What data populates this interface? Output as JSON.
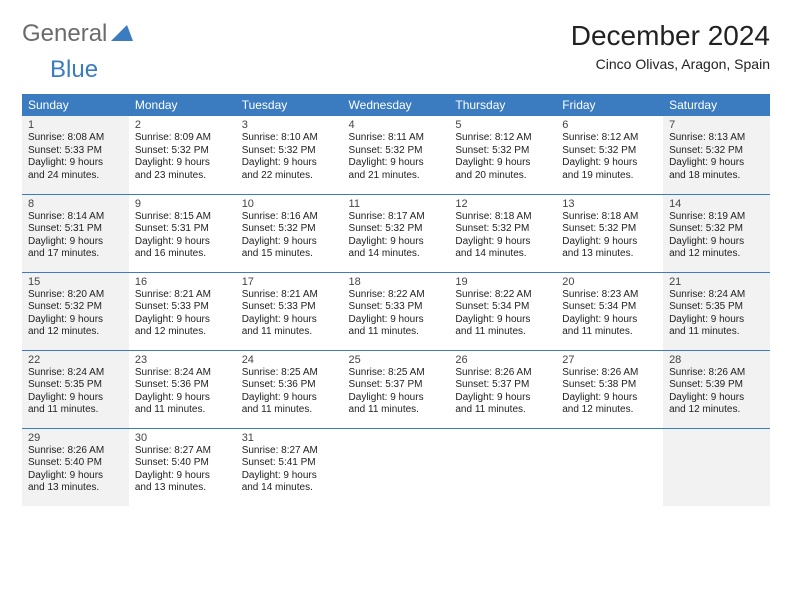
{
  "brand": {
    "part1": "General",
    "part2": "Blue"
  },
  "title": "December 2024",
  "location": "Cinco Olivas, Aragon, Spain",
  "colors": {
    "header_bg": "#3b7bbf",
    "header_text": "#ffffff",
    "row_divider": "#3b7bbf",
    "shaded_bg": "#f2f2f2",
    "text": "#222222"
  },
  "dayHeaders": [
    "Sunday",
    "Monday",
    "Tuesday",
    "Wednesday",
    "Thursday",
    "Friday",
    "Saturday"
  ],
  "weeks": [
    [
      {
        "num": "1",
        "shaded": true,
        "sunrise": "Sunrise: 8:08 AM",
        "sunset": "Sunset: 5:33 PM",
        "day1": "Daylight: 9 hours",
        "day2": "and 24 minutes."
      },
      {
        "num": "2",
        "shaded": false,
        "sunrise": "Sunrise: 8:09 AM",
        "sunset": "Sunset: 5:32 PM",
        "day1": "Daylight: 9 hours",
        "day2": "and 23 minutes."
      },
      {
        "num": "3",
        "shaded": false,
        "sunrise": "Sunrise: 8:10 AM",
        "sunset": "Sunset: 5:32 PM",
        "day1": "Daylight: 9 hours",
        "day2": "and 22 minutes."
      },
      {
        "num": "4",
        "shaded": false,
        "sunrise": "Sunrise: 8:11 AM",
        "sunset": "Sunset: 5:32 PM",
        "day1": "Daylight: 9 hours",
        "day2": "and 21 minutes."
      },
      {
        "num": "5",
        "shaded": false,
        "sunrise": "Sunrise: 8:12 AM",
        "sunset": "Sunset: 5:32 PM",
        "day1": "Daylight: 9 hours",
        "day2": "and 20 minutes."
      },
      {
        "num": "6",
        "shaded": false,
        "sunrise": "Sunrise: 8:12 AM",
        "sunset": "Sunset: 5:32 PM",
        "day1": "Daylight: 9 hours",
        "day2": "and 19 minutes."
      },
      {
        "num": "7",
        "shaded": true,
        "sunrise": "Sunrise: 8:13 AM",
        "sunset": "Sunset: 5:32 PM",
        "day1": "Daylight: 9 hours",
        "day2": "and 18 minutes."
      }
    ],
    [
      {
        "num": "8",
        "shaded": true,
        "sunrise": "Sunrise: 8:14 AM",
        "sunset": "Sunset: 5:31 PM",
        "day1": "Daylight: 9 hours",
        "day2": "and 17 minutes."
      },
      {
        "num": "9",
        "shaded": false,
        "sunrise": "Sunrise: 8:15 AM",
        "sunset": "Sunset: 5:31 PM",
        "day1": "Daylight: 9 hours",
        "day2": "and 16 minutes."
      },
      {
        "num": "10",
        "shaded": false,
        "sunrise": "Sunrise: 8:16 AM",
        "sunset": "Sunset: 5:32 PM",
        "day1": "Daylight: 9 hours",
        "day2": "and 15 minutes."
      },
      {
        "num": "11",
        "shaded": false,
        "sunrise": "Sunrise: 8:17 AM",
        "sunset": "Sunset: 5:32 PM",
        "day1": "Daylight: 9 hours",
        "day2": "and 14 minutes."
      },
      {
        "num": "12",
        "shaded": false,
        "sunrise": "Sunrise: 8:18 AM",
        "sunset": "Sunset: 5:32 PM",
        "day1": "Daylight: 9 hours",
        "day2": "and 14 minutes."
      },
      {
        "num": "13",
        "shaded": false,
        "sunrise": "Sunrise: 8:18 AM",
        "sunset": "Sunset: 5:32 PM",
        "day1": "Daylight: 9 hours",
        "day2": "and 13 minutes."
      },
      {
        "num": "14",
        "shaded": true,
        "sunrise": "Sunrise: 8:19 AM",
        "sunset": "Sunset: 5:32 PM",
        "day1": "Daylight: 9 hours",
        "day2": "and 12 minutes."
      }
    ],
    [
      {
        "num": "15",
        "shaded": true,
        "sunrise": "Sunrise: 8:20 AM",
        "sunset": "Sunset: 5:32 PM",
        "day1": "Daylight: 9 hours",
        "day2": "and 12 minutes."
      },
      {
        "num": "16",
        "shaded": false,
        "sunrise": "Sunrise: 8:21 AM",
        "sunset": "Sunset: 5:33 PM",
        "day1": "Daylight: 9 hours",
        "day2": "and 12 minutes."
      },
      {
        "num": "17",
        "shaded": false,
        "sunrise": "Sunrise: 8:21 AM",
        "sunset": "Sunset: 5:33 PM",
        "day1": "Daylight: 9 hours",
        "day2": "and 11 minutes."
      },
      {
        "num": "18",
        "shaded": false,
        "sunrise": "Sunrise: 8:22 AM",
        "sunset": "Sunset: 5:33 PM",
        "day1": "Daylight: 9 hours",
        "day2": "and 11 minutes."
      },
      {
        "num": "19",
        "shaded": false,
        "sunrise": "Sunrise: 8:22 AM",
        "sunset": "Sunset: 5:34 PM",
        "day1": "Daylight: 9 hours",
        "day2": "and 11 minutes."
      },
      {
        "num": "20",
        "shaded": false,
        "sunrise": "Sunrise: 8:23 AM",
        "sunset": "Sunset: 5:34 PM",
        "day1": "Daylight: 9 hours",
        "day2": "and 11 minutes."
      },
      {
        "num": "21",
        "shaded": true,
        "sunrise": "Sunrise: 8:24 AM",
        "sunset": "Sunset: 5:35 PM",
        "day1": "Daylight: 9 hours",
        "day2": "and 11 minutes."
      }
    ],
    [
      {
        "num": "22",
        "shaded": true,
        "sunrise": "Sunrise: 8:24 AM",
        "sunset": "Sunset: 5:35 PM",
        "day1": "Daylight: 9 hours",
        "day2": "and 11 minutes."
      },
      {
        "num": "23",
        "shaded": false,
        "sunrise": "Sunrise: 8:24 AM",
        "sunset": "Sunset: 5:36 PM",
        "day1": "Daylight: 9 hours",
        "day2": "and 11 minutes."
      },
      {
        "num": "24",
        "shaded": false,
        "sunrise": "Sunrise: 8:25 AM",
        "sunset": "Sunset: 5:36 PM",
        "day1": "Daylight: 9 hours",
        "day2": "and 11 minutes."
      },
      {
        "num": "25",
        "shaded": false,
        "sunrise": "Sunrise: 8:25 AM",
        "sunset": "Sunset: 5:37 PM",
        "day1": "Daylight: 9 hours",
        "day2": "and 11 minutes."
      },
      {
        "num": "26",
        "shaded": false,
        "sunrise": "Sunrise: 8:26 AM",
        "sunset": "Sunset: 5:37 PM",
        "day1": "Daylight: 9 hours",
        "day2": "and 11 minutes."
      },
      {
        "num": "27",
        "shaded": false,
        "sunrise": "Sunrise: 8:26 AM",
        "sunset": "Sunset: 5:38 PM",
        "day1": "Daylight: 9 hours",
        "day2": "and 12 minutes."
      },
      {
        "num": "28",
        "shaded": true,
        "sunrise": "Sunrise: 8:26 AM",
        "sunset": "Sunset: 5:39 PM",
        "day1": "Daylight: 9 hours",
        "day2": "and 12 minutes."
      }
    ],
    [
      {
        "num": "29",
        "shaded": true,
        "sunrise": "Sunrise: 8:26 AM",
        "sunset": "Sunset: 5:40 PM",
        "day1": "Daylight: 9 hours",
        "day2": "and 13 minutes."
      },
      {
        "num": "30",
        "shaded": false,
        "sunrise": "Sunrise: 8:27 AM",
        "sunset": "Sunset: 5:40 PM",
        "day1": "Daylight: 9 hours",
        "day2": "and 13 minutes."
      },
      {
        "num": "31",
        "shaded": false,
        "sunrise": "Sunrise: 8:27 AM",
        "sunset": "Sunset: 5:41 PM",
        "day1": "Daylight: 9 hours",
        "day2": "and 14 minutes."
      },
      {
        "empty": true,
        "shaded": false
      },
      {
        "empty": true,
        "shaded": false
      },
      {
        "empty": true,
        "shaded": false
      },
      {
        "empty": true,
        "shaded": true
      }
    ]
  ]
}
